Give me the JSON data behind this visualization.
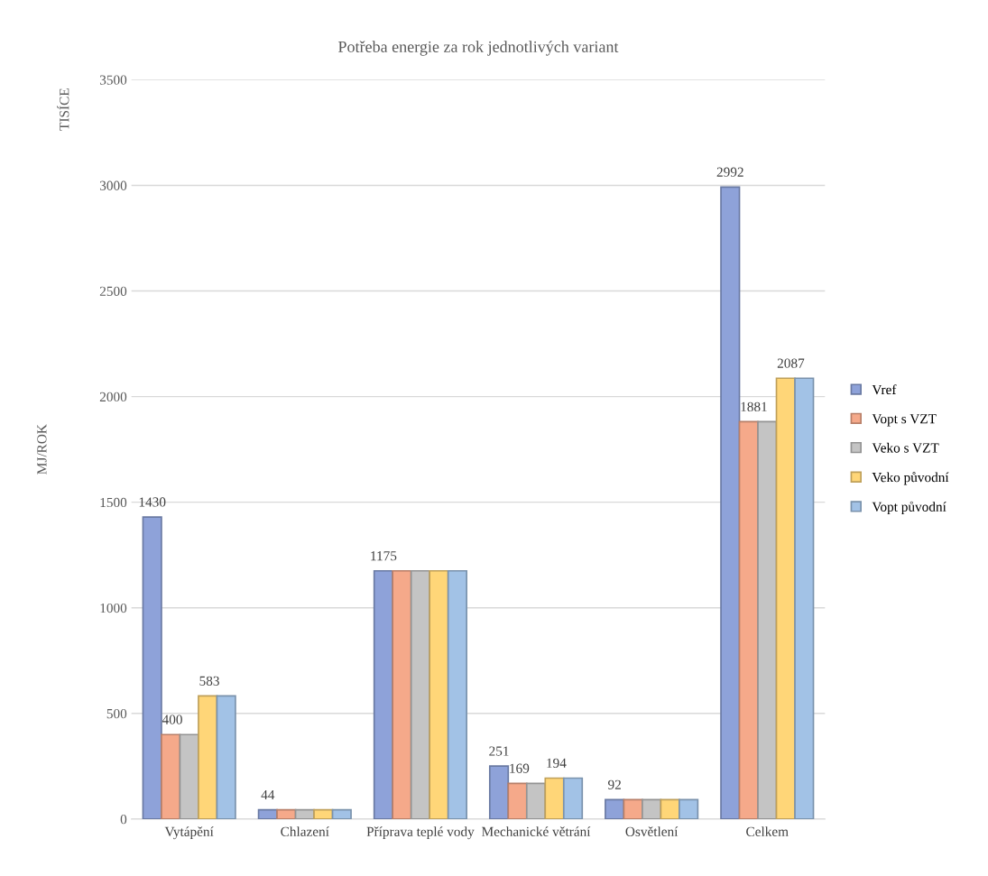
{
  "chart_data": {
    "type": "bar",
    "title": "Potřeba energie za rok jednotlivých variant",
    "ylabel": "MJ/ROK",
    "annotations": [
      "TISÍCE"
    ],
    "categories": [
      "Vytápění",
      "Chlazení",
      "Příprava teplé vody",
      "Mechanické větrání",
      "Osvětlení",
      "Celkem"
    ],
    "series": [
      {
        "name": "Vref",
        "color": "#8ea2d9",
        "values": [
          1430,
          44,
          1175,
          251,
          92,
          2992
        ],
        "value_labels": [
          "1430",
          "44",
          "1175",
          "251",
          "92",
          "2992"
        ]
      },
      {
        "name": "Vopt s VZT",
        "color": "#f5a98a",
        "values": [
          400,
          44,
          1175,
          169,
          92,
          1881
        ],
        "value_labels": [
          "400",
          null,
          null,
          "169",
          null,
          "1881"
        ]
      },
      {
        "name": "Veko s VZT",
        "color": "#c4c4c4",
        "values": [
          400,
          44,
          1175,
          169,
          92,
          1881
        ]
      },
      {
        "name": "Veko původní",
        "color": "#ffd678",
        "values": [
          583,
          44,
          1175,
          194,
          92,
          2087
        ],
        "value_labels": [
          "583",
          null,
          null,
          "194",
          null,
          "2087"
        ]
      },
      {
        "name": "Vopt původní",
        "color": "#a2c2e6",
        "values": [
          583,
          44,
          1175,
          194,
          92,
          2087
        ]
      }
    ],
    "ylim": [
      0,
      3500
    ],
    "yticks": [
      0,
      500,
      1000,
      1500,
      2000,
      2500,
      3000,
      3500
    ],
    "grid": "y",
    "legend": "right"
  }
}
